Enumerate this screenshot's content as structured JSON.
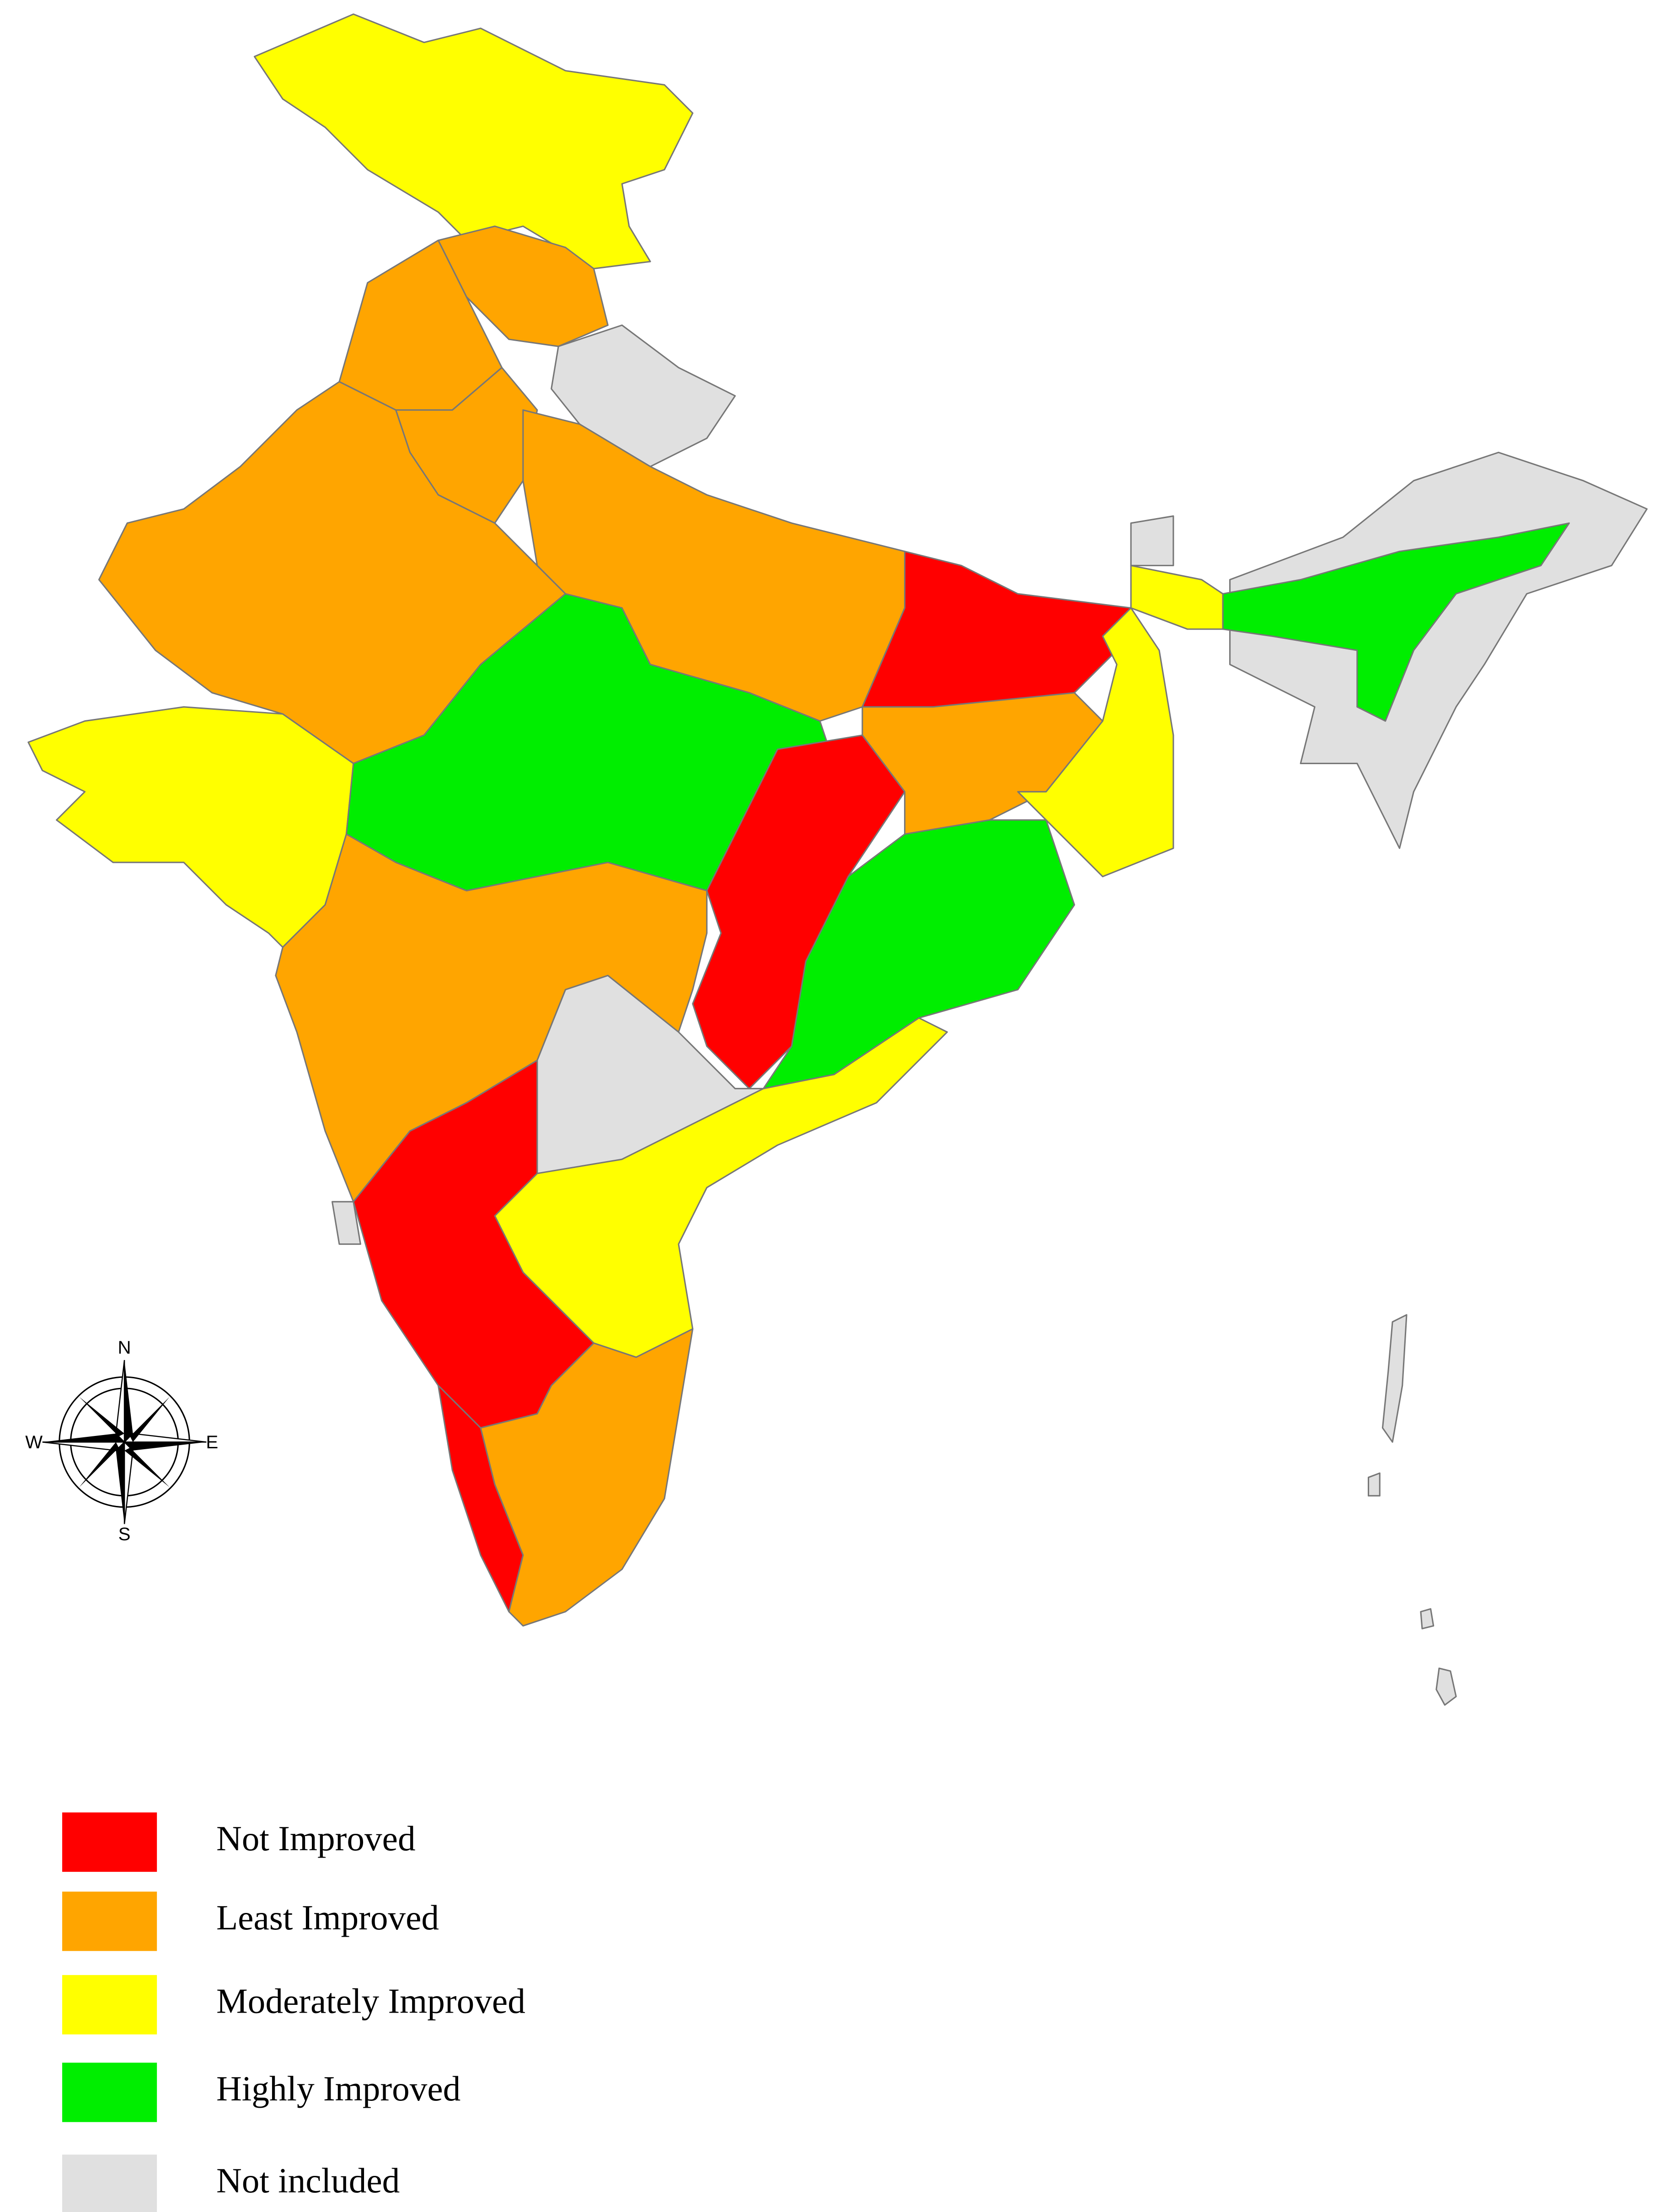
{
  "legend": {
    "items": [
      {
        "label": "Not Improved",
        "color": "#ff0000"
      },
      {
        "label": "Least Improved",
        "color": "#ffa500"
      },
      {
        "label": "Moderately Improved",
        "color": "#ffff00"
      },
      {
        "label": "Highly Improved",
        "color": "#00ee00"
      },
      {
        "label": "Not included",
        "color": "#e0e0e0"
      }
    ]
  },
  "compass": {
    "north": "N",
    "east": "E",
    "south": "S",
    "west": "W"
  }
}
